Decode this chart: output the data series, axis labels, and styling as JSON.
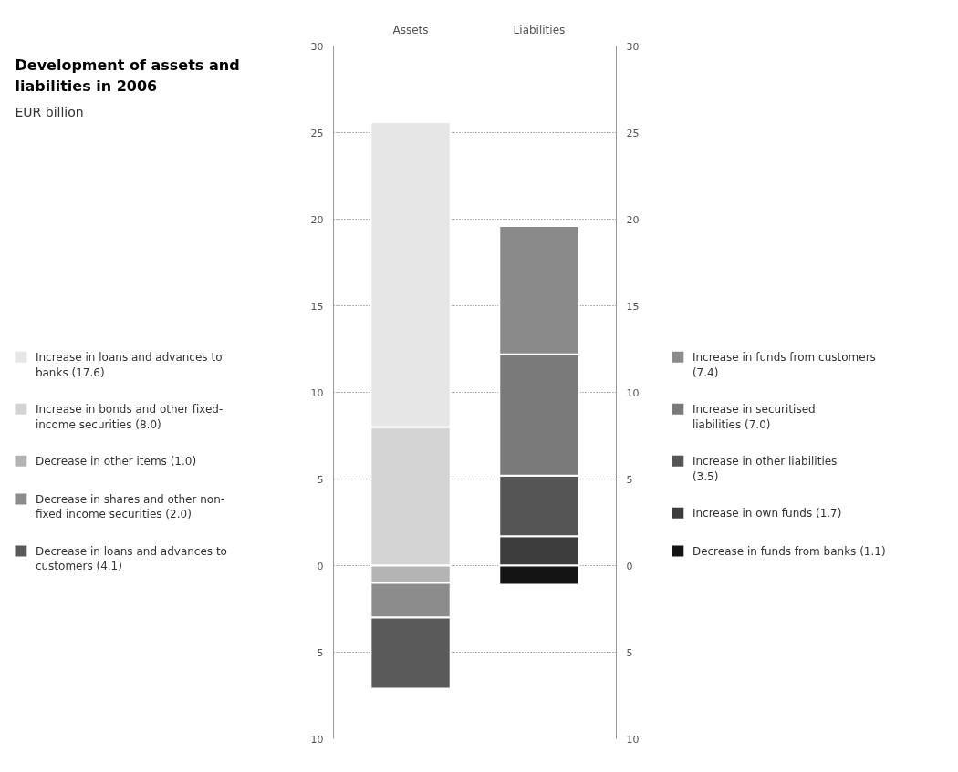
{
  "chart_data": {
    "type": "bar",
    "stacked": true,
    "title": "Development of assets and liabilities in 2006",
    "subtitle": "EUR billion",
    "categories": [
      "Assets",
      "Liabilities"
    ],
    "series": [
      {
        "name": "Increase in bonds and other fixed-income securities (8.0)",
        "color": "#d4d4d4",
        "values": [
          8.0,
          null
        ]
      },
      {
        "name": "Increase in loans and advances to banks (17.6)",
        "color": "#e6e6e6",
        "values": [
          17.6,
          null
        ]
      },
      {
        "name": "Decrease in other items (1.0)",
        "color": "#b4b4b4",
        "values": [
          -1.0,
          null
        ]
      },
      {
        "name": "Decrease in shares and other non-fixed income securities (2.0)",
        "color": "#8c8c8c",
        "values": [
          -2.0,
          null
        ]
      },
      {
        "name": "Decrease in loans and advances to customers (4.1)",
        "color": "#5a5a5a",
        "values": [
          -4.1,
          null
        ]
      },
      {
        "name": "Increase in own funds (1.7)",
        "color": "#3c3c3c",
        "values": [
          null,
          1.7
        ]
      },
      {
        "name": "Increase in other liabilities (3.5)",
        "color": "#555555",
        "values": [
          null,
          3.5
        ]
      },
      {
        "name": "Increase in securitised liabilities (7.0)",
        "color": "#7a7a7a",
        "values": [
          null,
          7.0
        ]
      },
      {
        "name": "Increase in funds from customers (7.4)",
        "color": "#8a8a8a",
        "values": [
          null,
          7.4
        ]
      },
      {
        "name": "Decrease in funds from banks (1.1)",
        "color": "#141414",
        "values": [
          null,
          -1.1
        ]
      }
    ],
    "ylim": [
      -10,
      30
    ],
    "yticks": [
      {
        "value": -10,
        "label": "10"
      },
      {
        "value": -5,
        "label": "5"
      },
      0,
      5,
      10,
      15,
      20,
      25,
      30
    ],
    "y2lim": [
      -10,
      30
    ],
    "y2ticks": [
      {
        "value": -10,
        "label": "10"
      },
      {
        "value": -5,
        "label": "5"
      },
      0,
      5,
      10,
      15,
      20,
      25,
      30
    ],
    "grid": "y",
    "legend": "left"
  }
}
